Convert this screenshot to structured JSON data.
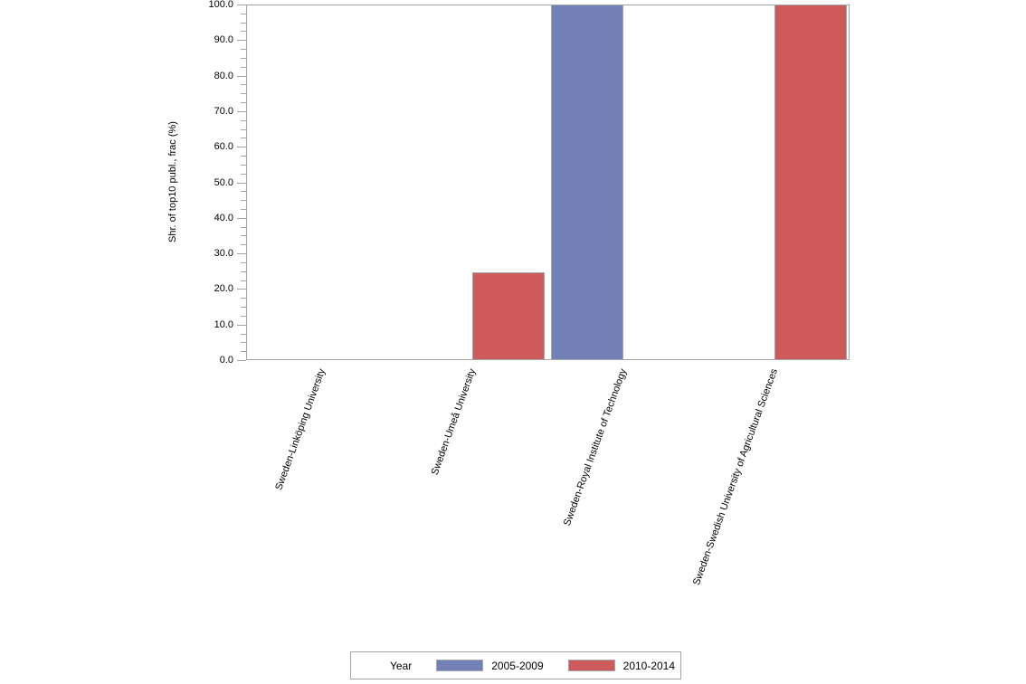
{
  "chart_data": {
    "type": "bar",
    "title": "",
    "xlabel": "",
    "ylabel": "Shr. of top10 publ., frac (%)",
    "ylim": [
      0,
      100
    ],
    "ytick_step": 10,
    "ytick_minor_step": 2.5,
    "ytick_decimals": 1,
    "grid": false,
    "legend_title": "Year",
    "legend_position": "bottom",
    "categories": [
      "Sweden-Linköping University",
      "Sweden-Umeå University",
      "Sweden-Royal Institute of Technology",
      "Sweden-Swedish University of Agricultural Sciences"
    ],
    "series": [
      {
        "name": "2005-2009",
        "color": "#7380b5",
        "values": [
          0,
          0,
          100,
          0
        ]
      },
      {
        "name": "2010-2014",
        "color": "#cd5b5b",
        "values": [
          0,
          24.8,
          0,
          100
        ]
      }
    ]
  },
  "colors": {
    "frame": "#a2a6ab",
    "text": "#000000",
    "background": "#ffffff",
    "series_blue": "#7380b5",
    "series_red": "#cd5b5b"
  }
}
